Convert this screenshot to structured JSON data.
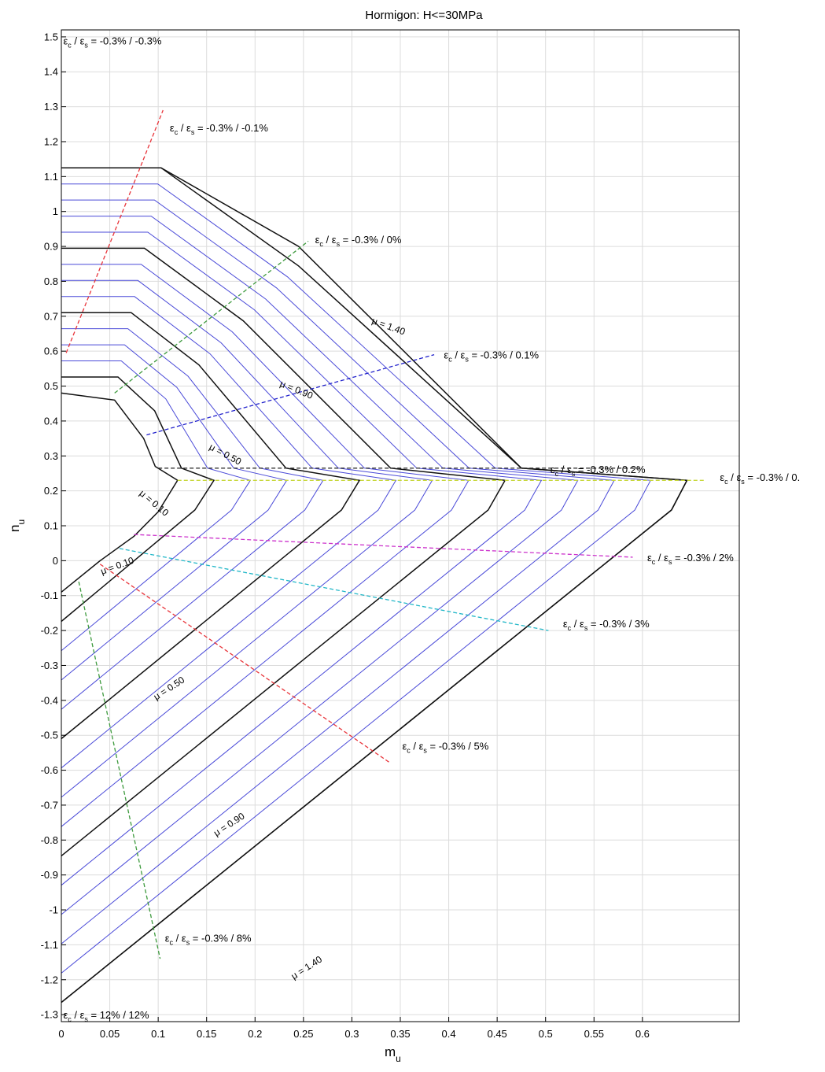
{
  "chart_data": {
    "type": "line",
    "title": "Hormigon: H<=30MPa",
    "xlabel": "m",
    "xlabel_sub": "u",
    "ylabel": "n",
    "ylabel_sub": "u",
    "xlim": [
      0,
      0.7
    ],
    "ylim": [
      -1.32,
      1.52
    ],
    "grid": true,
    "x_ticks": [
      {
        "v": 0,
        "label": "0"
      },
      {
        "v": 0.05,
        "label": "0.05"
      },
      {
        "v": 0.1,
        "label": "0.1"
      },
      {
        "v": 0.15,
        "label": "0.15"
      },
      {
        "v": 0.2,
        "label": "0.2"
      },
      {
        "v": 0.25,
        "label": "0.25"
      },
      {
        "v": 0.3,
        "label": "0.3"
      },
      {
        "v": 0.35,
        "label": "0.35"
      },
      {
        "v": 0.4,
        "label": "0.4"
      },
      {
        "v": 0.45,
        "label": "0.45"
      },
      {
        "v": 0.5,
        "label": "0.5"
      },
      {
        "v": 0.55,
        "label": "0.55"
      },
      {
        "v": 0.6,
        "label": "0.6"
      }
    ],
    "y_ticks": [
      {
        "v": 1.5,
        "label": "1.5"
      },
      {
        "v": 1.4,
        "label": "1.4"
      },
      {
        "v": 1.3,
        "label": "1.3"
      },
      {
        "v": 1.2,
        "label": "1.2"
      },
      {
        "v": 1.1,
        "label": "1.1"
      },
      {
        "v": 1.0,
        "label": "1"
      },
      {
        "v": 0.9,
        "label": "0.9"
      },
      {
        "v": 0.8,
        "label": "0.8"
      },
      {
        "v": 0.7,
        "label": "0.7"
      },
      {
        "v": 0.6,
        "label": "0.6"
      },
      {
        "v": 0.5,
        "label": "0.5"
      },
      {
        "v": 0.4,
        "label": "0.4"
      },
      {
        "v": 0.3,
        "label": "0.3"
      },
      {
        "v": 0.2,
        "label": "0.2"
      },
      {
        "v": 0.1,
        "label": "0.1"
      },
      {
        "v": 0,
        "label": "0"
      },
      {
        "v": -0.1,
        "label": "-0.1"
      },
      {
        "v": -0.2,
        "label": "-0.2"
      },
      {
        "v": -0.3,
        "label": "-0.3"
      },
      {
        "v": -0.4,
        "label": "-0.4"
      },
      {
        "v": -0.5,
        "label": "-0.5"
      },
      {
        "v": -0.6,
        "label": "-0.6"
      },
      {
        "v": -0.7,
        "label": "-0.7"
      },
      {
        "v": -0.8,
        "label": "-0.8"
      },
      {
        "v": -0.9,
        "label": "-0.9"
      },
      {
        "v": -1.0,
        "label": "-1"
      },
      {
        "v": -1.1,
        "label": "-1.1"
      },
      {
        "v": -1.2,
        "label": "-1.2"
      },
      {
        "v": -1.3,
        "label": "-1.3"
      }
    ],
    "interaction_curves": {
      "mu_values": [
        0,
        0.1,
        0.2,
        0.3,
        0.4,
        0.5,
        0.6,
        0.7,
        0.8,
        0.9,
        1.0,
        1.1,
        1.2,
        1.3,
        1.4
      ],
      "highlighted_mu": [
        0.1,
        0.5,
        0.9,
        1.4
      ],
      "mu_zero_curve": [
        [
          0,
          0.48
        ],
        [
          0.055,
          0.46
        ],
        [
          0.085,
          0.35
        ],
        [
          0.097,
          0.27
        ],
        [
          0.12,
          0.23
        ],
        [
          0.1,
          0.14
        ],
        [
          0.075,
          0.07
        ],
        [
          0.04,
          0.0
        ],
        [
          0.0,
          -0.09
        ]
      ],
      "mu_1_40_curve": [
        [
          0,
          1.125
        ],
        [
          0.103,
          1.125
        ],
        [
          0.245,
          0.9
        ],
        [
          0.475,
          0.265
        ],
        [
          0.646,
          0.23
        ],
        [
          0.63,
          0.145
        ],
        [
          0.0,
          -1.265
        ]
      ]
    },
    "series": [
      {
        "name": "εc / εs = -0.3% / -0.1%",
        "color": "#e8343a",
        "x": [
          0.005,
          0.105
        ],
        "y": [
          0.595,
          1.29
        ]
      },
      {
        "name": "εc / εs = -0.3% / 0%",
        "color": "#3d9a3d",
        "x": [
          0.055,
          0.255
        ],
        "y": [
          0.48,
          0.915
        ]
      },
      {
        "name": "εc / εs = -0.3% / 0.1%",
        "color": "#2222cc",
        "x": [
          0.088,
          0.385
        ],
        "y": [
          0.36,
          0.59
        ]
      },
      {
        "name": "εc / εs = -0.3% / 0.2%",
        "color": "#333333",
        "x": [
          0.1,
          0.6
        ],
        "y": [
          0.265,
          0.265
        ]
      },
      {
        "name": "εc / εs = -0.3% / 0.",
        "color": "#c8d83a",
        "x": [
          0.12,
          0.665
        ],
        "y": [
          0.23,
          0.23
        ]
      },
      {
        "name": "εc / εs = -0.3% / 2%",
        "color": "#cc33cc",
        "x": [
          0.075,
          0.59
        ],
        "y": [
          0.075,
          0.01
        ]
      },
      {
        "name": "εc / εs = -0.3% / 3%",
        "color": "#22b7c8",
        "x": [
          0.06,
          0.503
        ],
        "y": [
          0.035,
          -0.2
        ]
      },
      {
        "name": "εc / εs = -0.3% / 5%",
        "color": "#e8343a",
        "x": [
          0.04,
          0.34
        ],
        "y": [
          -0.01,
          -0.58
        ]
      },
      {
        "name": "εc / εs = -0.3% / 8%",
        "color": "#3d9a3d",
        "x": [
          0.018,
          0.102
        ],
        "y": [
          -0.06,
          -1.14
        ]
      }
    ],
    "annotations": [
      {
        "name": "ann-strain-top",
        "pre": "ε",
        "s1": "c",
        "mid": " / ε",
        "s2": "s",
        "post": " = -0.3% / -0.3%",
        "x": 0.002,
        "y": 1.49,
        "angle": 0
      },
      {
        "name": "ann-strain-m01",
        "pre": "ε",
        "s1": "c",
        "mid": " / ε",
        "s2": "s",
        "post": " = -0.3% / -0.1%",
        "x": 0.112,
        "y": 1.24,
        "angle": 0
      },
      {
        "name": "ann-strain-0",
        "pre": "ε",
        "s1": "c",
        "mid": " / ε",
        "s2": "s",
        "post": " = -0.3% / 0%",
        "x": 0.262,
        "y": 0.92,
        "angle": 0
      },
      {
        "name": "ann-strain-01",
        "pre": "ε",
        "s1": "c",
        "mid": " / ε",
        "s2": "s",
        "post": " = -0.3% / 0.1%",
        "x": 0.395,
        "y": 0.59,
        "angle": 0
      },
      {
        "name": "ann-strain-02",
        "pre": "ε",
        "s1": "c",
        "mid": " / ε",
        "s2": "s",
        "post": " = -0.3% / 0.2%",
        "x": 0.505,
        "y": 0.262,
        "angle": 0
      },
      {
        "name": "ann-strain-0x",
        "pre": "ε",
        "s1": "c",
        "mid": " / ε",
        "s2": "s",
        "post": " = -0.3% / 0.",
        "x": 0.68,
        "y": 0.24,
        "angle": 0
      },
      {
        "name": "ann-strain-2",
        "pre": "ε",
        "s1": "c",
        "mid": " / ε",
        "s2": "s",
        "post": " = -0.3% / 2%",
        "x": 0.605,
        "y": 0.01,
        "angle": 0
      },
      {
        "name": "ann-strain-3",
        "pre": "ε",
        "s1": "c",
        "mid": " / ε",
        "s2": "s",
        "post": " = -0.3% / 3%",
        "x": 0.518,
        "y": -0.18,
        "angle": 0
      },
      {
        "name": "ann-strain-5",
        "pre": "ε",
        "s1": "c",
        "mid": " / ε",
        "s2": "s",
        "post": " = -0.3% / 5%",
        "x": 0.352,
        "y": -0.53,
        "angle": 0
      },
      {
        "name": "ann-strain-8",
        "pre": "ε",
        "s1": "c",
        "mid": " / ε",
        "s2": "s",
        "post": " = -0.3% / 8%",
        "x": 0.107,
        "y": -1.08,
        "angle": 0
      },
      {
        "name": "ann-strain-12",
        "pre": "ε",
        "s1": "c",
        "mid": " / ε",
        "s2": "s",
        "post": " = 12% / 12%",
        "x": 0.002,
        "y": -1.3,
        "angle": 0
      }
    ],
    "mu_labels": [
      {
        "text": "μ = 1.40",
        "x": 0.32,
        "y": 0.68,
        "angle": 20
      },
      {
        "text": "μ = 0.90",
        "x": 0.225,
        "y": 0.5,
        "angle": 22
      },
      {
        "text": "μ = 0.50",
        "x": 0.152,
        "y": 0.32,
        "angle": 28
      },
      {
        "text": "μ = 0.10",
        "x": 0.08,
        "y": 0.19,
        "angle": 40
      },
      {
        "text": "μ = 0.10",
        "x": 0.042,
        "y": -0.04,
        "angle": -20
      },
      {
        "text": "μ = 0.50",
        "x": 0.098,
        "y": -0.4,
        "angle": -33
      },
      {
        "text": "μ = 0.90",
        "x": 0.16,
        "y": -0.79,
        "angle": -33
      },
      {
        "text": "μ = 1.40",
        "x": 0.24,
        "y": -1.2,
        "angle": -33
      }
    ]
  }
}
